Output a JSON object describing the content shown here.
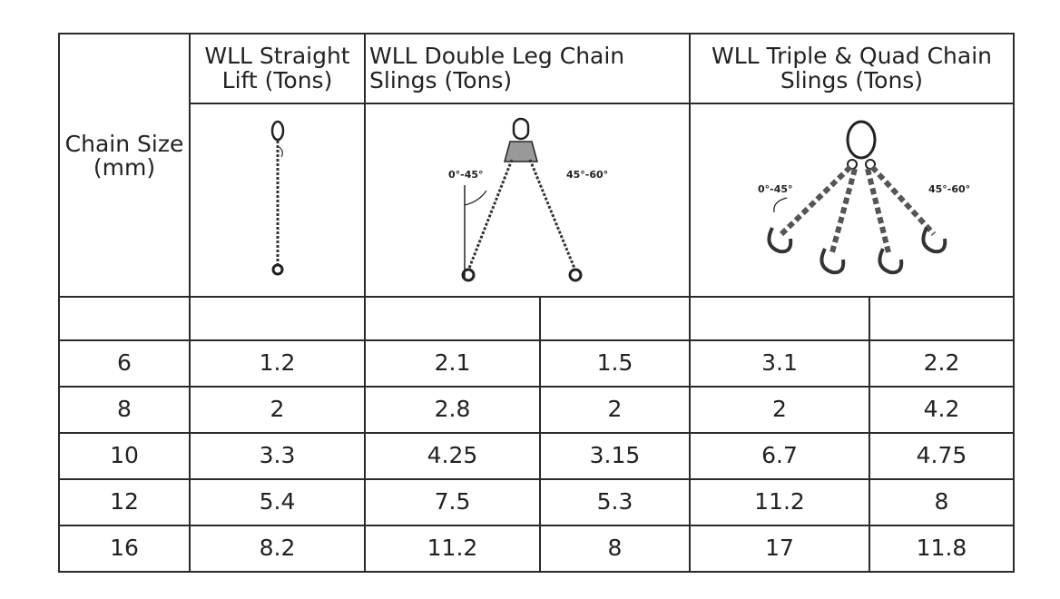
{
  "headers": {
    "chain_size": "Chain Size (mm)",
    "straight": "WLL Straight Lift (Tons)",
    "double": "WLL Double Leg Chain Slings (Tons)",
    "triple_quad": "WLL Triple & Quad Chain Slings (Tons)"
  },
  "angles": {
    "double_a": "0°-45°",
    "double_b": "45°-60°",
    "quad_a": "0°-45°",
    "quad_b": "45°-60°"
  },
  "rows": [
    {
      "size": "6",
      "straight": "1.2",
      "double_45": "2.1",
      "double_60": "1.5",
      "quad_45": "3.1",
      "quad_60": "2.2"
    },
    {
      "size": "8",
      "straight": "2",
      "double_45": "2.8",
      "double_60": "2",
      "quad_45": "2",
      "quad_60": "4.2"
    },
    {
      "size": "10",
      "straight": "3.3",
      "double_45": "4.25",
      "double_60": "3.15",
      "quad_45": "6.7",
      "quad_60": "4.75"
    },
    {
      "size": "12",
      "straight": "5.4",
      "double_45": "7.5",
      "double_60": "5.3",
      "quad_45": "11.2",
      "quad_60": "8"
    },
    {
      "size": "16",
      "straight": "8.2",
      "double_45": "11.2",
      "double_60": "8",
      "quad_45": "17",
      "quad_60": "11.8"
    }
  ]
}
